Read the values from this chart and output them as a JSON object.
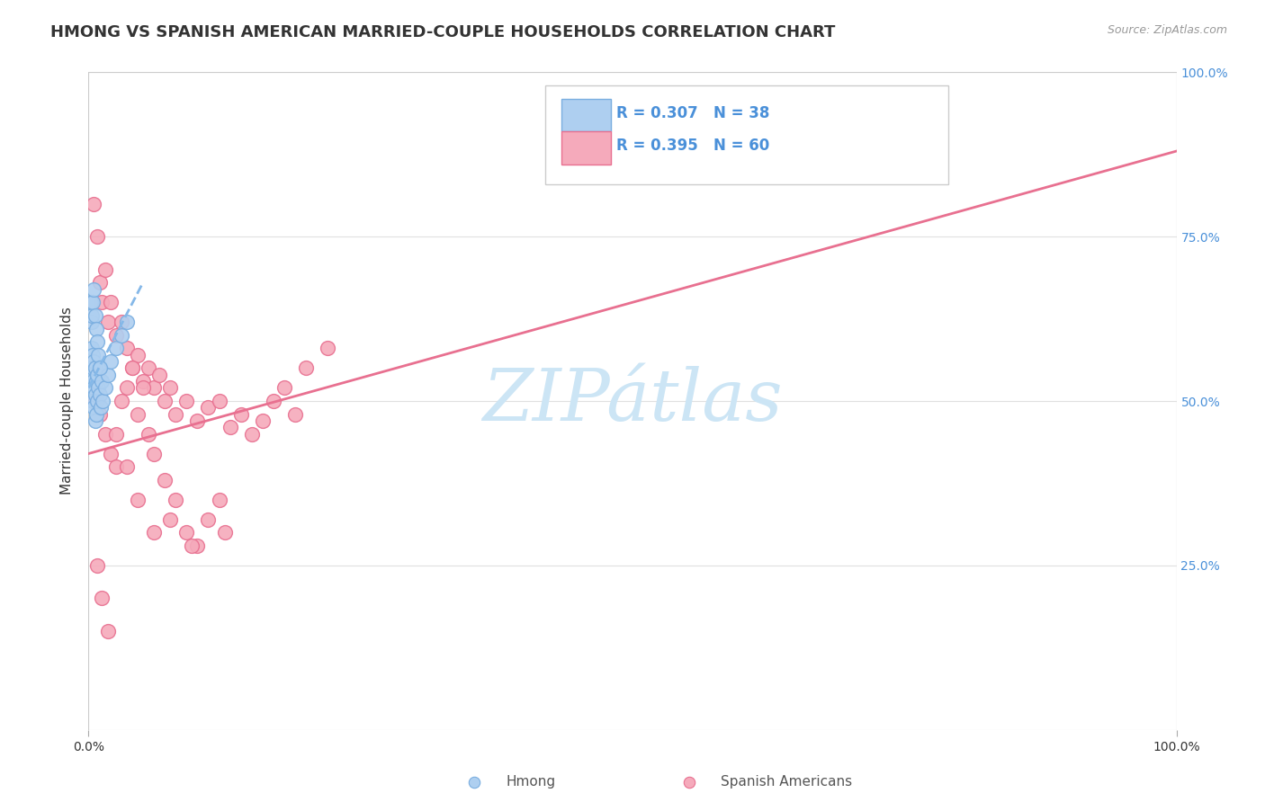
{
  "title": "HMONG VS SPANISH AMERICAN MARRIED-COUPLE HOUSEHOLDS CORRELATION CHART",
  "source": "Source: ZipAtlas.com",
  "ylabel": "Married-couple Households",
  "legend_label_1": "Hmong",
  "legend_label_2": "Spanish Americans",
  "R1": 0.307,
  "N1": 38,
  "R2": 0.395,
  "N2": 60,
  "hmong_color": "#aecff0",
  "hmong_edge_color": "#7aaee0",
  "spanish_color": "#f5aabb",
  "spanish_edge_color": "#e87090",
  "trend1_color": "#85b8e8",
  "trend2_color": "#e87090",
  "background_color": "#ffffff",
  "watermark_text": "ZIPátlas",
  "watermark_color": "#cce5f5",
  "grid_color": "#e0e0e0",
  "title_color": "#333333",
  "source_color": "#999999",
  "axis_label_color": "#333333",
  "tick_color": "#4a90d9",
  "xlim": [
    0,
    100
  ],
  "ylim": [
    0,
    100
  ],
  "hmong_x": [
    0.2,
    0.3,
    0.3,
    0.3,
    0.4,
    0.4,
    0.4,
    0.4,
    0.5,
    0.5,
    0.5,
    0.6,
    0.6,
    0.6,
    0.7,
    0.7,
    0.8,
    0.8,
    0.9,
    1.0,
    1.0,
    1.1,
    1.2,
    1.3,
    1.5,
    1.8,
    2.0,
    2.5,
    3.0,
    3.5,
    0.3,
    0.4,
    0.5,
    0.6,
    0.7,
    0.8,
    0.9,
    1.0
  ],
  "hmong_y": [
    65,
    62,
    58,
    54,
    57,
    55,
    53,
    50,
    56,
    52,
    49,
    55,
    51,
    47,
    53,
    48,
    54,
    50,
    52,
    55,
    51,
    49,
    53,
    50,
    52,
    54,
    56,
    58,
    60,
    62,
    63,
    65,
    67,
    63,
    61,
    59,
    57,
    55
  ],
  "spanish_x": [
    0.5,
    0.8,
    1.0,
    1.2,
    1.5,
    1.8,
    2.0,
    2.5,
    3.0,
    3.5,
    4.0,
    4.5,
    5.0,
    5.5,
    6.0,
    6.5,
    7.0,
    7.5,
    8.0,
    9.0,
    10.0,
    11.0,
    12.0,
    13.0,
    14.0,
    15.0,
    16.0,
    17.0,
    18.0,
    19.0,
    0.6,
    1.0,
    1.5,
    2.0,
    2.5,
    3.0,
    3.5,
    4.0,
    4.5,
    5.0,
    5.5,
    6.0,
    7.0,
    8.0,
    9.0,
    10.0,
    11.0,
    12.0,
    20.0,
    22.0,
    0.8,
    1.2,
    1.8,
    2.5,
    3.5,
    4.5,
    6.0,
    7.5,
    9.5,
    12.5
  ],
  "spanish_y": [
    80,
    75,
    68,
    65,
    70,
    62,
    65,
    60,
    62,
    58,
    55,
    57,
    53,
    55,
    52,
    54,
    50,
    52,
    48,
    50,
    47,
    49,
    50,
    46,
    48,
    45,
    47,
    50,
    52,
    48,
    50,
    48,
    45,
    42,
    40,
    50,
    52,
    55,
    48,
    52,
    45,
    42,
    38,
    35,
    30,
    28,
    32,
    35,
    55,
    58,
    25,
    20,
    15,
    45,
    40,
    35,
    30,
    32,
    28,
    30
  ],
  "hmong_trend_x0": 0,
  "hmong_trend_y0": 52,
  "hmong_trend_x1": 5,
  "hmong_trend_y1": 68,
  "spanish_trend_x0": 0,
  "spanish_trend_y0": 42,
  "spanish_trend_x1": 100,
  "spanish_trend_y1": 88
}
